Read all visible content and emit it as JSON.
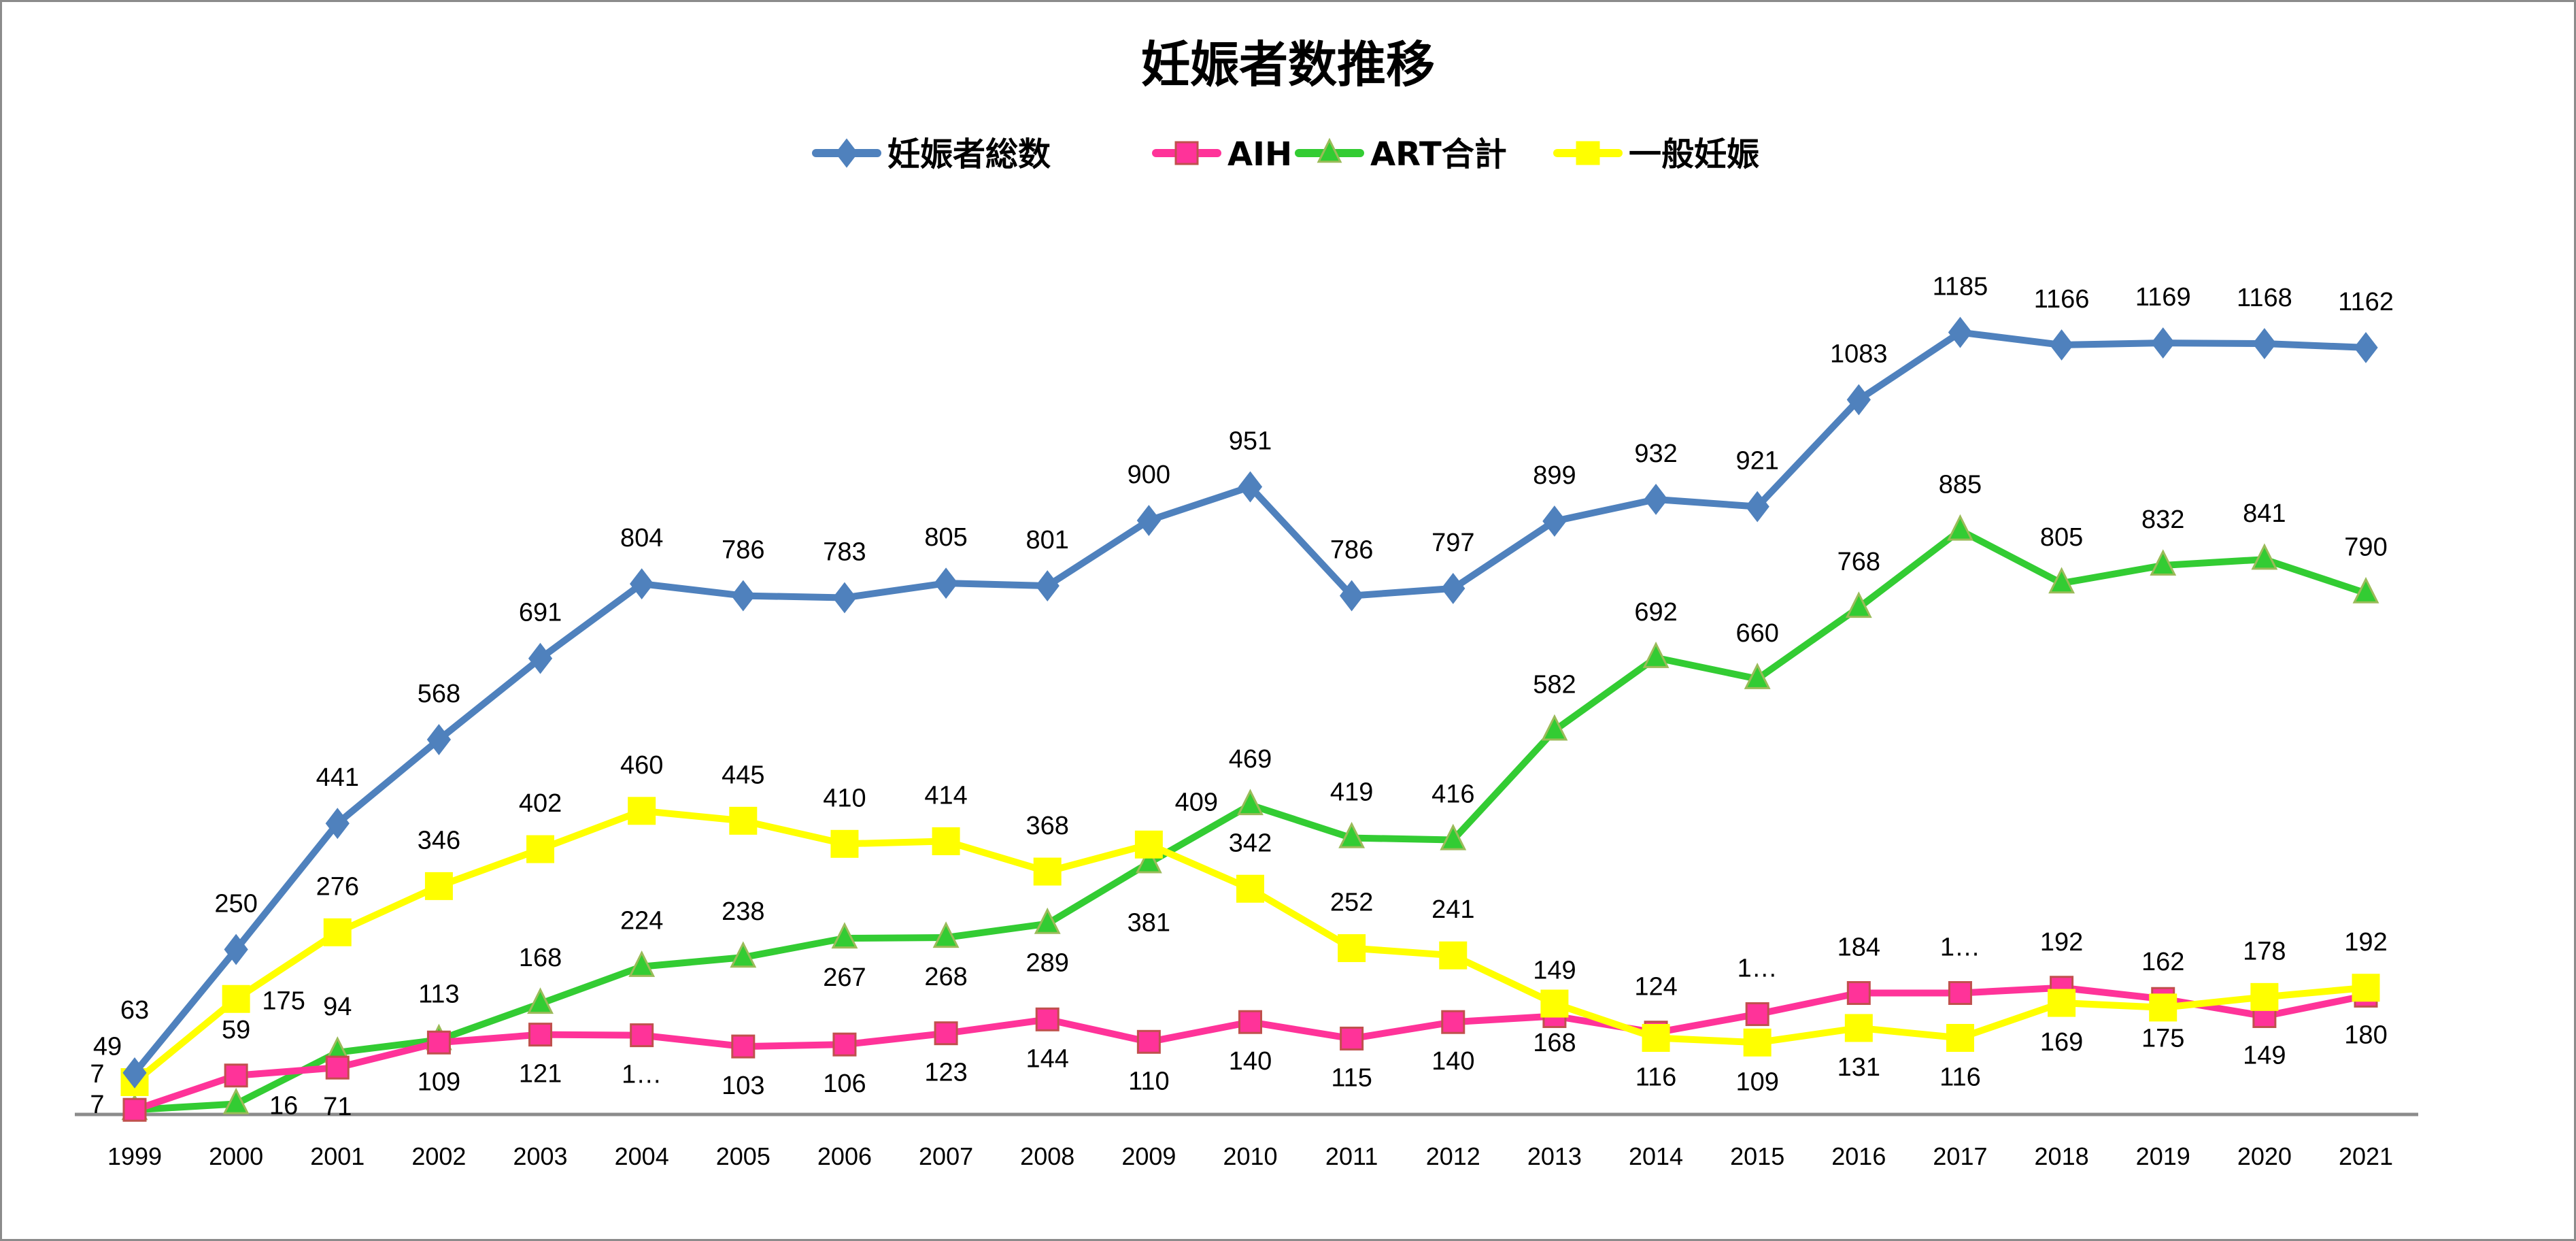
{
  "chart_data": {
    "type": "line",
    "title": "妊娠者数推移",
    "xlabel": "",
    "ylabel": "",
    "ylim": [
      0,
      1400
    ],
    "grid": false,
    "legend_placement": "top",
    "categories": [
      "1999",
      "2000",
      "2001",
      "2002",
      "2003",
      "2004",
      "2005",
      "2006",
      "2007",
      "2008",
      "2009",
      "2010",
      "2011",
      "2012",
      "2013",
      "2014",
      "2015",
      "2016",
      "2017",
      "2018",
      "2019",
      "2020",
      "2021"
    ],
    "series": [
      {
        "name": "妊娠者総数",
        "color": "#4f81bd",
        "marker": "diamond",
        "values": [
          63,
          250,
          441,
          568,
          691,
          804,
          786,
          783,
          805,
          801,
          900,
          951,
          786,
          797,
          899,
          932,
          921,
          1083,
          1185,
          1166,
          1169,
          1168,
          1162
        ]
      },
      {
        "name": "AIH",
        "color": "#ff3399",
        "marker": "square",
        "values": [
          7,
          59,
          71,
          109,
          121,
          120,
          103,
          106,
          123,
          144,
          110,
          140,
          115,
          140,
          149,
          124,
          152,
          184,
          184,
          192,
          175,
          149,
          180
        ],
        "labels": [
          "7",
          "59",
          "71",
          "109",
          "121",
          "1…",
          "103",
          "106",
          "123",
          "144",
          "110",
          "140",
          "115",
          "140",
          "149",
          "124",
          "1…",
          "184",
          "1…",
          "192",
          "175",
          "149",
          "180"
        ]
      },
      {
        "name": "ART合計",
        "color": "#33cc33",
        "marker": "triangle",
        "values": [
          7,
          16,
          94,
          113,
          168,
          224,
          238,
          267,
          268,
          289,
          381,
          469,
          419,
          416,
          582,
          692,
          660,
          768,
          885,
          805,
          832,
          841,
          790
        ]
      },
      {
        "name": "一般妊娠",
        "color": "#ffff00",
        "marker": "square",
        "values": [
          49,
          175,
          276,
          346,
          402,
          460,
          445,
          410,
          414,
          368,
          409,
          342,
          252,
          241,
          168,
          116,
          109,
          131,
          116,
          169,
          162,
          178,
          192
        ]
      }
    ]
  }
}
